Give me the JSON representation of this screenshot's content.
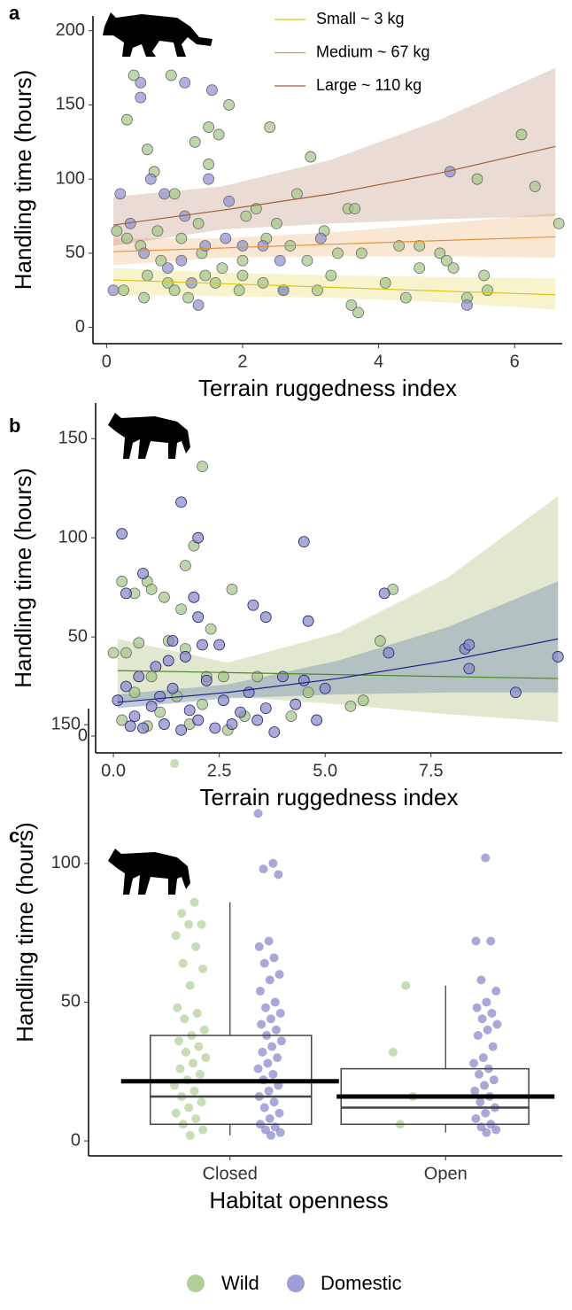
{
  "chart_data": [
    {
      "type": "scatter",
      "label": "a",
      "xlabel": "Terrain ruggedness index",
      "ylabel": "Handling time (hours)",
      "xlim": [
        -0.2,
        6.7
      ],
      "ylim": [
        -11,
        210
      ],
      "xticks": [
        0,
        2,
        4,
        6
      ],
      "yticks": [
        0,
        50,
        100,
        150,
        200
      ],
      "series": [
        {
          "color": "#a3c585",
          "x": [
            0.3,
            0.4,
            0.95,
            1.3,
            1.5,
            1.8,
            1.65,
            0.6,
            0.7,
            1.0,
            1.5,
            2.4,
            3.0,
            6.1,
            6.3,
            5.45,
            6.65,
            0.15,
            0.3,
            0.5,
            0.8,
            1.1,
            1.4,
            1.7,
            2.0,
            2.3,
            2.6,
            3.1,
            3.6,
            3.7,
            4.1,
            4.4,
            4.6,
            4.9,
            5.3,
            5.6,
            2.2,
            2.5,
            2.8,
            3.2,
            3.55,
            3.65,
            0.55,
            0.9,
            1.2,
            1.6,
            2.0,
            2.7,
            3.4,
            4.3,
            5.0,
            5.55,
            0.6,
            1.0,
            1.45,
            1.95,
            2.35,
            3.3,
            0.25,
            0.75,
            1.35,
            2.05,
            2.95,
            3.75,
            4.6,
            5.1
          ],
          "values": [
            140,
            170,
            170,
            125,
            135,
            150,
            130,
            120,
            105,
            90,
            110,
            135,
            115,
            130,
            95,
            100,
            70,
            65,
            60,
            55,
            45,
            60,
            50,
            40,
            35,
            30,
            25,
            25,
            15,
            10,
            30,
            20,
            40,
            50,
            20,
            25,
            80,
            70,
            90,
            65,
            80,
            80,
            20,
            30,
            20,
            30,
            45,
            55,
            50,
            55,
            45,
            35,
            35,
            25,
            35,
            25,
            60,
            35,
            25,
            65,
            70,
            75,
            45,
            50,
            55,
            40
          ]
        },
        {
          "color": "#8e8ed0",
          "x": [
            0.1,
            0.2,
            0.5,
            0.5,
            1.15,
            1.55,
            1.5,
            0.65,
            0.85,
            1.15,
            1.45,
            1.75,
            2.3,
            2.6,
            3.15,
            5.05,
            5.3,
            0.35,
            0.55,
            0.9,
            1.25,
            1.35,
            2.0,
            2.55,
            1.8,
            1.1
          ],
          "values": [
            25,
            90,
            165,
            155,
            165,
            160,
            100,
            100,
            90,
            75,
            55,
            60,
            55,
            25,
            60,
            105,
            15,
            70,
            50,
            40,
            30,
            15,
            55,
            45,
            85,
            45
          ]
        }
      ],
      "fits": [
        {
          "name": "Small ~ 3 kg",
          "color": "#d8c71a",
          "x": [
            0.1,
            1.7,
            3.3,
            4.9,
            6.6
          ],
          "values": [
            32,
            29.5,
            27,
            24.5,
            22
          ],
          "lower": [
            22,
            21,
            20,
            17,
            12
          ],
          "upper": [
            40,
            37,
            35,
            34,
            33
          ]
        },
        {
          "name": "Medium ~ 67 kg",
          "color": "#e3923a",
          "x": [
            0.1,
            1.7,
            3.3,
            4.9,
            6.6
          ],
          "values": [
            51,
            53.5,
            56,
            58.5,
            61
          ],
          "lower": [
            42,
            47,
            48,
            48,
            47
          ],
          "upper": [
            60,
            60,
            64,
            70,
            77
          ]
        },
        {
          "name": "Large ~ 110 kg",
          "color": "#a0603c",
          "x": [
            0.1,
            1.7,
            3.3,
            4.9,
            6.6
          ],
          "values": [
            69,
            79,
            90,
            104,
            122
          ],
          "lower": [
            55,
            66,
            70,
            73,
            75
          ],
          "upper": [
            88,
            95,
            113,
            140,
            175
          ]
        }
      ]
    },
    {
      "type": "scatter",
      "label": "b",
      "xlabel": "Terrain ruggedness index",
      "ylabel": "Handling time (hours)",
      "xlim": [
        -0.42,
        10.6
      ],
      "ylim": [
        -8.5,
        168
      ],
      "xticks": [
        {
          "value": 0,
          "label": "0.0"
        },
        2.5,
        {
          "value": 5,
          "label": "5.0"
        },
        7.5
      ],
      "yticks": [
        0,
        50,
        100,
        150
      ],
      "series": [
        {
          "color": "#a3c585",
          "x": [
            0.2,
            0.5,
            0.8,
            0.9,
            1.2,
            1.6,
            1.7,
            1.9,
            2.1,
            2.3,
            2.8,
            6.3,
            5.9,
            6.6,
            0.0,
            0.3,
            0.6,
            0.9,
            1.3,
            1.7,
            2.2,
            2.6,
            3.4,
            4.6,
            0.5,
            1.1,
            1.5,
            2.1,
            3.1,
            4.2,
            0.2,
            0.8,
            1.8,
            2.7,
            5.6
          ],
          "values": [
            78,
            72,
            78,
            74,
            70,
            64,
            86,
            96,
            136,
            54,
            74,
            48,
            18,
            74,
            42,
            42,
            47,
            30,
            48,
            44,
            30,
            30,
            30,
            22,
            22,
            12,
            20,
            16,
            10,
            10,
            8,
            5,
            6,
            3,
            15
          ]
        },
        {
          "color": "#8686c6",
          "x": [
            0.2,
            0.3,
            0.7,
            1.4,
            1.6,
            1.9,
            2.0,
            2.5,
            3.3,
            4.5,
            2.0,
            3.6,
            4.6,
            6.4,
            6.5,
            8.3,
            8.4,
            8.4,
            9.5,
            10.5,
            0.1,
            0.3,
            0.5,
            0.7,
            0.9,
            1.0,
            1.2,
            1.4,
            1.6,
            1.8,
            2.0,
            2.2,
            2.4,
            2.6,
            2.8,
            3.0,
            3.2,
            3.4,
            3.6,
            3.8,
            4.0,
            4.3,
            4.5,
            4.8,
            5.0,
            2.1,
            1.3,
            0.4,
            0.6,
            1.1,
            1.7
          ],
          "values": [
            102,
            72,
            82,
            48,
            118,
            70,
            60,
            46,
            66,
            98,
            100,
            60,
            58,
            72,
            42,
            44,
            34,
            46,
            22,
            40,
            18,
            25,
            10,
            4,
            15,
            35,
            6,
            24,
            3,
            13,
            8,
            28,
            4,
            18,
            6,
            12,
            22,
            8,
            14,
            2,
            30,
            16,
            28,
            8,
            24,
            46,
            38,
            5,
            30,
            20,
            40
          ]
        }
      ],
      "fits": [
        {
          "color": "#4f8a23",
          "bandcolor": "#c9d6a8",
          "x": [
            0.1,
            2.7,
            5.3,
            7.9,
            10.5
          ],
          "values": [
            33,
            32,
            31,
            30,
            29
          ],
          "lower": [
            18,
            20,
            16,
            11,
            7
          ],
          "upper": [
            49,
            37,
            52,
            80,
            121
          ]
        },
        {
          "color": "#1c1c8a",
          "bandcolor": "#8ea0b8",
          "x": [
            0.1,
            2.7,
            5.3,
            7.9,
            10.5
          ],
          "values": [
            17,
            22,
            29,
            38,
            49
          ],
          "lower": [
            14,
            19,
            21,
            22,
            22
          ],
          "upper": [
            21,
            26,
            38,
            55,
            78
          ]
        }
      ]
    },
    {
      "type": "box",
      "label": "c",
      "xlabel": "Habitat openness",
      "ylabel": "Handling time (hours)",
      "categories": [
        "Closed",
        "Open"
      ],
      "ylim": [
        -5.4,
        155.8
      ],
      "yticks": [
        0,
        50,
        100,
        150
      ],
      "q1": [
        6,
        6
      ],
      "median": [
        16,
        12
      ],
      "q3": [
        38,
        26
      ],
      "whisker_low": [
        2,
        3
      ],
      "whisker_high": [
        86,
        56
      ],
      "mean": [
        21.5,
        16
      ],
      "series": [
        {
          "color": "#a3c585",
          "values": [
            [
              136,
              86,
              82,
              78,
              78,
              74,
              70,
              64,
              62,
              56,
              48,
              46,
              44,
              40,
              38,
              36,
              34,
              32,
              30,
              28,
              26,
              24,
              22,
              20,
              18,
              16,
              14,
              12,
              10,
              8,
              6,
              4,
              2
            ],
            [
              56,
              32,
              16,
              6
            ]
          ]
        },
        {
          "color": "#6f6fc0",
          "values": [
            [
              118,
              100,
              98,
              96,
              72,
              70,
              66,
              64,
              60,
              58,
              54,
              50,
              48,
              46,
              44,
              42,
              40,
              38,
              36,
              34,
              32,
              30,
              28,
              26,
              24,
              22,
              20,
              18,
              16,
              14,
              12,
              10,
              8,
              6,
              5,
              4,
              3,
              2
            ],
            [
              102,
              72,
              72,
              58,
              54,
              50,
              48,
              46,
              44,
              42,
              40,
              38,
              34,
              30,
              28,
              26,
              24,
              22,
              20,
              18,
              16,
              14,
              12,
              10,
              8,
              6,
              5,
              4,
              3
            ]
          ]
        }
      ]
    }
  ],
  "legend": {
    "items": [
      {
        "name": "Wild",
        "color": "#a3c585"
      },
      {
        "name": "Domestic",
        "color": "#8e8ed0"
      }
    ]
  }
}
